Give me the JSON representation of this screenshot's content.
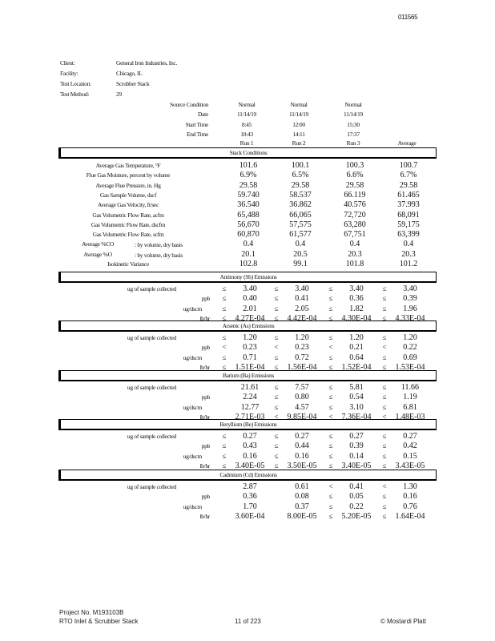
{
  "page_id": "011565",
  "info": [
    {
      "label": "Client:",
      "value": "General Iron Industries, Inc."
    },
    {
      "label": "Facility:",
      "value": "Chicago, IL"
    },
    {
      "label": "Test Location:",
      "value": "Scrubber Stack"
    },
    {
      "label": "Test Method:",
      "value": "29"
    }
  ],
  "run_info": [
    {
      "label": "Source Condition",
      "values": [
        "Normal",
        "Normal",
        "Normal"
      ]
    },
    {
      "label": "Date",
      "values": [
        "11/14/19",
        "11/14/19",
        "11/14/19"
      ]
    },
    {
      "label": "Start Time",
      "values": [
        "8:45",
        "12:00",
        "15:30"
      ]
    },
    {
      "label": "End Time",
      "values": [
        "10:43",
        "14:11",
        "17:37"
      ]
    }
  ],
  "columns": [
    "Run 1",
    "Run 2",
    "Run 3",
    "Average"
  ],
  "stack": {
    "title": "Stack Conditions",
    "rows": [
      {
        "label": "Average Gas Temperature, °F",
        "values": [
          "101.6",
          "100.1",
          "100.3",
          "100.7"
        ]
      },
      {
        "label": "Flue Gas Moisture, percent by volume",
        "values": [
          "6.9%",
          "6.5%",
          "6.6%",
          "6.7%"
        ]
      },
      {
        "label": "Average Flue Pressure, in. Hg",
        "values": [
          "29.58",
          "29.58",
          "29.58",
          "29.58"
        ]
      },
      {
        "label": "Gas Sample Volume, dscf",
        "values": [
          "59.740",
          "58.537",
          "66.119",
          "61.465"
        ]
      },
      {
        "label": "Average Gas Velocity, ft/sec",
        "values": [
          "36.540",
          "36.862",
          "40.576",
          "37.993"
        ]
      },
      {
        "label": "Gas Volumetric Flow Rate, acfm",
        "values": [
          "65,488",
          "66,065",
          "72,720",
          "68,091"
        ]
      },
      {
        "label": "Gas Volumetric Flow Rate, dscfm",
        "values": [
          "56,670",
          "57,575",
          "63,280",
          "59,175"
        ]
      },
      {
        "label": "Gas Volumetric Flow Rate, scfm",
        "values": [
          "60,870",
          "61,577",
          "67,751",
          "63,399"
        ]
      },
      {
        "label": "Average %CO",
        "note": ":  by volume, dry basis",
        "values": [
          "0.4",
          "0.4",
          "0.4",
          "0.4"
        ]
      },
      {
        "label": "Average %O",
        "note": ":  by volume, dry basis",
        "values": [
          "20.1",
          "20.5",
          "20.3",
          "20.3"
        ]
      },
      {
        "label": "Isokinetic Variance",
        "values": [
          "102.8",
          "99.1",
          "101.8",
          "101.2"
        ]
      }
    ]
  },
  "sections": [
    {
      "title": "Antimony (Sb) Emissions",
      "rows": [
        {
          "label": "ug of sample collected",
          "syms": [
            "≤",
            "≤",
            "≤",
            "≤"
          ],
          "values": [
            "3.40",
            "3.40",
            "3.40",
            "3.40"
          ]
        },
        {
          "label": "ppb",
          "syms": [
            "≤",
            "≤",
            "≤",
            "≤"
          ],
          "values": [
            "0.40",
            "0.41",
            "0.36",
            "0.39"
          ]
        },
        {
          "label": "ug/dscm",
          "syms": [
            "≤",
            "≤",
            "≤",
            "≤"
          ],
          "values": [
            "2.01",
            "2.05",
            "1.82",
            "1.96"
          ]
        },
        {
          "label": "lb/hr",
          "syms": [
            "≤",
            "≤",
            "≤",
            "≤"
          ],
          "values": [
            "4.27E-04",
            "4.42E-04",
            "4.30E-04",
            "4.33E-04"
          ]
        }
      ]
    },
    {
      "title": "Arsenic (As) Emissions",
      "rows": [
        {
          "label": "ug of sample collected",
          "syms": [
            "≤",
            "≤",
            "≤",
            "≤"
          ],
          "values": [
            "1.20",
            "1.20",
            "1.20",
            "1.20"
          ]
        },
        {
          "label": "ppb",
          "syms": [
            "<",
            "<",
            "<",
            "<"
          ],
          "values": [
            "0.23",
            "0.23",
            "0.21",
            "0.22"
          ]
        },
        {
          "label": "ug/dscm",
          "syms": [
            "≤",
            "≤",
            "≤",
            "≤"
          ],
          "values": [
            "0.71",
            "0.72",
            "0.64",
            "0.69"
          ]
        },
        {
          "label": "lb/hr",
          "syms": [
            "≤",
            "≤",
            "≤",
            "≤"
          ],
          "values": [
            "1.51E-04",
            "1.56E-04",
            "1.52E-04",
            "1.53E-04"
          ]
        }
      ]
    },
    {
      "title": "Barium (Ba) Emissions",
      "rows": [
        {
          "label": "ug of sample collected",
          "syms": [
            "",
            "≤",
            "≤",
            "≤"
          ],
          "values": [
            "21.61",
            "7.57",
            "5.81",
            "11.66"
          ]
        },
        {
          "label": "ppb",
          "syms": [
            "",
            "≤",
            "≤",
            "≤"
          ],
          "values": [
            "2.24",
            "0.80",
            "0.54",
            "1.19"
          ]
        },
        {
          "label": "ug/dscm",
          "syms": [
            "",
            "≤",
            "≤",
            "≤"
          ],
          "values": [
            "12.77",
            "4.57",
            "3.10",
            "6.81"
          ]
        },
        {
          "label": "lb/hr",
          "syms": [
            "",
            "<",
            "<",
            "<"
          ],
          "values": [
            "2.71E-03",
            "9.85E-04",
            "7.36E-04",
            "1.48E-03"
          ]
        }
      ]
    },
    {
      "title": "Beryllium (Be) Emissions",
      "rows": [
        {
          "label": "ug of sample collected",
          "syms": [
            "≤",
            "≤",
            "≤",
            "≤"
          ],
          "values": [
            "0.27",
            "0.27",
            "0.27",
            "0.27"
          ]
        },
        {
          "label": "ppb",
          "syms": [
            "≤",
            "≤",
            "≤",
            "≤"
          ],
          "values": [
            "0.43",
            "0.44",
            "0.39",
            "0.42"
          ]
        },
        {
          "label": "ug/dscm",
          "syms": [
            "≤",
            "≤",
            "≤",
            "≤"
          ],
          "values": [
            "0.16",
            "0.16",
            "0.14",
            "0.15"
          ]
        },
        {
          "label": "lb/hr",
          "syms": [
            "≤",
            "≤",
            "≤",
            "≤"
          ],
          "values": [
            "3.40E-05",
            "3.50E-05",
            "3.40E-05",
            "3.43E-05"
          ]
        }
      ]
    },
    {
      "title": "Cadmium (Cd) Emissions",
      "rows": [
        {
          "label": "ug of sample collected",
          "syms": [
            "",
            "",
            "<",
            "<"
          ],
          "values": [
            "2.87",
            "0.61",
            "0.41",
            "1.30"
          ]
        },
        {
          "label": "ppb",
          "syms": [
            "",
            "",
            "≤",
            "≤"
          ],
          "values": [
            "0.36",
            "0.08",
            "0.05",
            "0.16"
          ]
        },
        {
          "label": "ug/dscm",
          "syms": [
            "",
            "",
            "≤",
            "≤"
          ],
          "values": [
            "1.70",
            "0.37",
            "0.22",
            "0.76"
          ]
        },
        {
          "label": "lb/hr",
          "syms": [
            "",
            "",
            "≤",
            "≤"
          ],
          "values": [
            "3.60E-04",
            "8.00E-05",
            "5.20E-05",
            "1.64E-04"
          ]
        }
      ]
    }
  ],
  "footer": {
    "project": "Project No. M193103B",
    "location": "RTO Inlet & Scrubber Stack",
    "page": "11 of 223",
    "company": "© Mostardi Platt"
  }
}
